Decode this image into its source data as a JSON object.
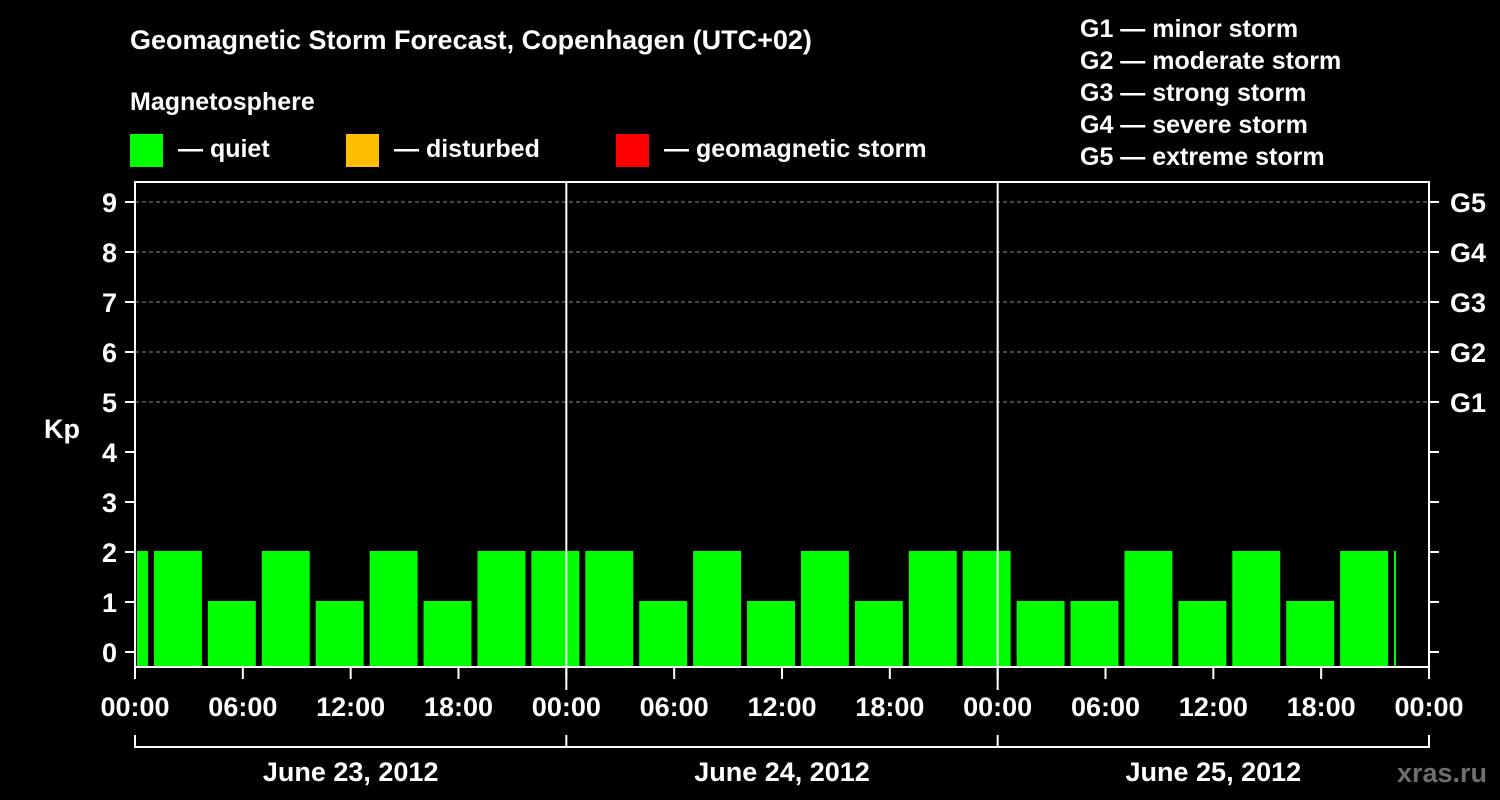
{
  "chart_data": {
    "type": "bar",
    "title": "Geomagnetic Storm Forecast, Copenhagen (UTC+02)",
    "ylabel": "Kp",
    "ylim": [
      0,
      9
    ],
    "yticks": [
      "0",
      "1",
      "2",
      "3",
      "4",
      "5",
      "6",
      "7",
      "8",
      "9"
    ],
    "right_axis_labels": [
      {
        "kp": 5,
        "label": "G1"
      },
      {
        "kp": 6,
        "label": "G2"
      },
      {
        "kp": 7,
        "label": "G3"
      },
      {
        "kp": 8,
        "label": "G4"
      },
      {
        "kp": 9,
        "label": "G5"
      }
    ],
    "x_start_hour": -2,
    "x_end_hour": 70,
    "interval_hours": 3,
    "xticks": [
      {
        "hour": 0,
        "label": "00:00"
      },
      {
        "hour": 6,
        "label": "06:00"
      },
      {
        "hour": 12,
        "label": "12:00"
      },
      {
        "hour": 18,
        "label": "18:00"
      },
      {
        "hour": 24,
        "label": "00:00"
      },
      {
        "hour": 30,
        "label": "06:00"
      },
      {
        "hour": 36,
        "label": "12:00"
      },
      {
        "hour": 42,
        "label": "18:00"
      },
      {
        "hour": 48,
        "label": "00:00"
      },
      {
        "hour": 54,
        "label": "06:00"
      },
      {
        "hour": 60,
        "label": "12:00"
      },
      {
        "hour": 66,
        "label": "18:00"
      },
      {
        "hour": 72,
        "label": "00:00"
      }
    ],
    "day_boundaries": [
      24,
      48
    ],
    "days": [
      {
        "label": "June 23, 2012",
        "start": 0,
        "end": 24
      },
      {
        "label": "June 24, 2012",
        "start": 24,
        "end": 48
      },
      {
        "label": "June 25, 2012",
        "start": 48,
        "end": 72
      }
    ],
    "values": [
      2,
      2,
      1,
      2,
      1,
      2,
      1,
      2,
      2,
      2,
      1,
      2,
      1,
      2,
      1,
      2,
      2,
      1,
      1,
      2,
      1,
      2,
      1,
      2,
      2
    ],
    "legend": {
      "heading": "Magnetosphere",
      "items": [
        {
          "label": "— quiet",
          "color": "#00ff00"
        },
        {
          "label": "— disturbed",
          "color": "#ffbf00"
        },
        {
          "label": "— geomagnetic storm",
          "color": "#ff0000"
        }
      ]
    },
    "storm_scale": [
      "G1 — minor storm",
      "G2 — moderate storm",
      "G3 — strong storm",
      "G4 — severe storm",
      "G5 — extreme storm"
    ],
    "watermark": "xras.ru"
  }
}
